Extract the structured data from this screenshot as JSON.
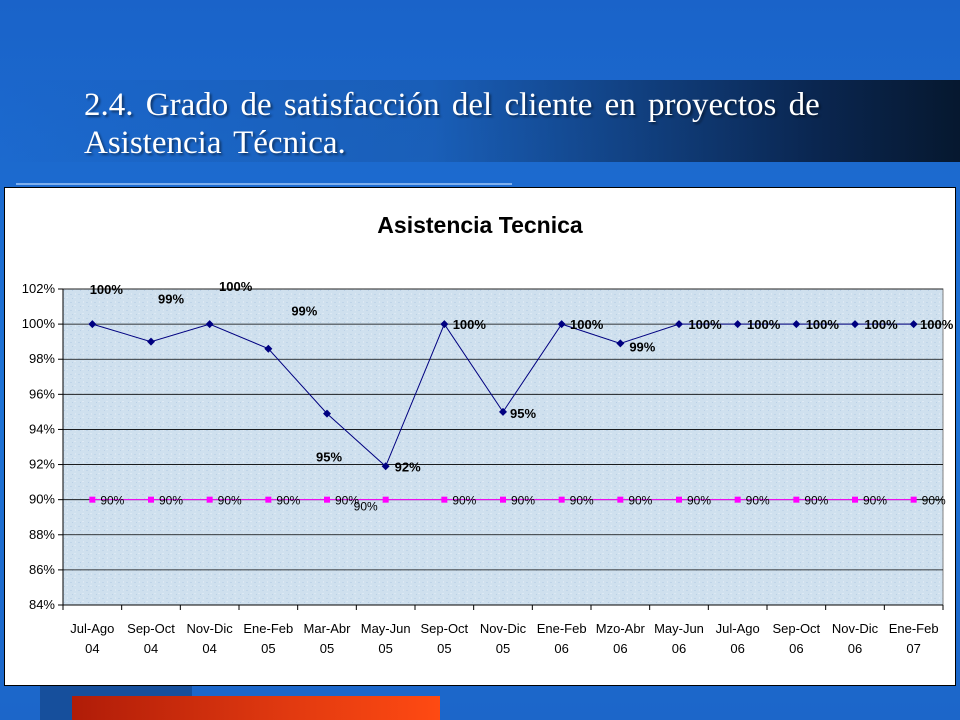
{
  "slide": {
    "title": "2.4. Grado de satisfacción del cliente en proyectos de Asistencia Técnica."
  },
  "colors": {
    "background": "#1f6fd0",
    "plot_area": "#cfe0ee",
    "satisfaction_series": "#000080",
    "target_series": "#ff00ff"
  },
  "chart_data": {
    "type": "line",
    "title": "Asistencia Tecnica",
    "xlabel": "",
    "ylabel": "",
    "categories": [
      [
        "Jul-Ago",
        "04"
      ],
      [
        "Sep-Oct",
        "04"
      ],
      [
        "Nov-Dic",
        "04"
      ],
      [
        "Ene-Feb",
        "05"
      ],
      [
        "Mar-Abr",
        "05"
      ],
      [
        "May-Jun",
        "05"
      ],
      [
        "Sep-Oct",
        "05"
      ],
      [
        "Nov-Dic",
        "05"
      ],
      [
        "Ene-Feb",
        "06"
      ],
      [
        "Mzo-Abr",
        "06"
      ],
      [
        "May-Jun",
        "06"
      ],
      [
        "Jul-Ago",
        "06"
      ],
      [
        "Sep-Oct",
        "06"
      ],
      [
        "Nov-Dic",
        "06"
      ],
      [
        "Ene-Feb",
        "07"
      ]
    ],
    "ylim": [
      84,
      102
    ],
    "yticks": [
      84,
      86,
      88,
      90,
      92,
      94,
      96,
      98,
      100,
      102
    ],
    "y_unit": "%",
    "grid": true,
    "legend": "none",
    "series": [
      {
        "marker": "diamond",
        "values": [
          100,
          99,
          100,
          98.6,
          94.9,
          91.9,
          100,
          95,
          100,
          98.9,
          100,
          100,
          100,
          100,
          100
        ],
        "labels": [
          "100%",
          "99%",
          "100%",
          "99%",
          "95%",
          "92%",
          "100%",
          "95%",
          "100%",
          "99%",
          "100%",
          "100%",
          "100%",
          "100%",
          "100%"
        ]
      },
      {
        "marker": "square",
        "values": [
          90,
          90,
          90,
          90,
          90,
          90,
          90,
          90,
          90,
          90,
          90,
          90,
          90,
          90,
          90
        ],
        "labels": [
          "90%",
          "90%",
          "90%",
          "90%",
          "90%",
          "90%",
          "90%",
          "90%",
          "90%",
          "90%",
          "90%",
          "90%",
          "90%",
          "90%",
          "90%"
        ]
      }
    ]
  }
}
